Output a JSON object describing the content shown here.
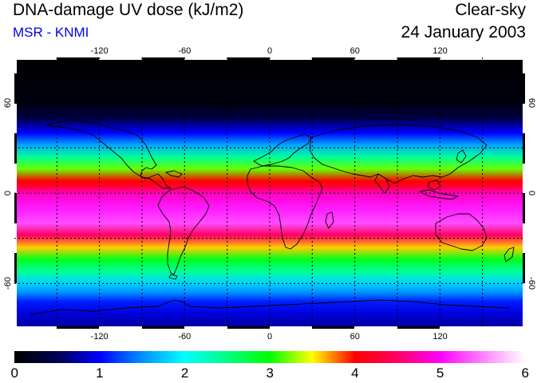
{
  "header": {
    "title": "DNA-damage UV dose (kJ/m2)",
    "source": "MSR - KNMI",
    "condition": "Clear-sky",
    "date": "24 January 2003"
  },
  "colors": {
    "source_text": "#0000ee",
    "grid_line": "#000000"
  },
  "axes": {
    "lon_ticks": [
      "-120",
      "-60",
      "0",
      "60",
      "120"
    ],
    "lon_values": [
      -120,
      -60,
      0,
      60,
      120
    ],
    "lat_ticks": [
      "60",
      "0",
      "-60"
    ],
    "lat_values": [
      60,
      0,
      -60
    ],
    "lon_range": [
      -180,
      180
    ],
    "lat_range": [
      -90,
      90
    ]
  },
  "colorbar": {
    "labels": [
      "0",
      "1",
      "2",
      "3",
      "4",
      "5",
      "6"
    ],
    "min": 0,
    "max": 6,
    "stops": [
      {
        "value": 0,
        "color": "#000000"
      },
      {
        "value": 0.5,
        "color": "#000050"
      },
      {
        "value": 1,
        "color": "#0000ff"
      },
      {
        "value": 1.5,
        "color": "#0090ff"
      },
      {
        "value": 2,
        "color": "#00ffff"
      },
      {
        "value": 2.5,
        "color": "#00ff80"
      },
      {
        "value": 3,
        "color": "#00ff00"
      },
      {
        "value": 3.5,
        "color": "#ffff00"
      },
      {
        "value": 4,
        "color": "#ff0000"
      },
      {
        "value": 4.5,
        "color": "#ff0060"
      },
      {
        "value": 5,
        "color": "#ff00ff"
      },
      {
        "value": 5.5,
        "color": "#ff80ff"
      },
      {
        "value": 6,
        "color": "#ffffff"
      }
    ]
  },
  "dose_profile": [
    {
      "lat": 90,
      "value": 0
    },
    {
      "lat": 60,
      "value": 0.1
    },
    {
      "lat": 50,
      "value": 0.4
    },
    {
      "lat": 40,
      "value": 1.0
    },
    {
      "lat": 32,
      "value": 1.6
    },
    {
      "lat": 24,
      "value": 2.4
    },
    {
      "lat": 16,
      "value": 3.2
    },
    {
      "lat": 8,
      "value": 4.0
    },
    {
      "lat": 4,
      "value": 4.3
    },
    {
      "lat": 0,
      "value": 4.8
    },
    {
      "lat": -10,
      "value": 5.1
    },
    {
      "lat": -20,
      "value": 5.3
    },
    {
      "lat": -28,
      "value": 4.5
    },
    {
      "lat": -36,
      "value": 3.6
    },
    {
      "lat": -44,
      "value": 2.9
    },
    {
      "lat": -52,
      "value": 2.4
    },
    {
      "lat": -60,
      "value": 1.8
    },
    {
      "lat": -66,
      "value": 1.5
    },
    {
      "lat": -72,
      "value": 1.1
    },
    {
      "lat": -80,
      "value": 0.9
    },
    {
      "lat": -90,
      "value": 0.7
    }
  ]
}
